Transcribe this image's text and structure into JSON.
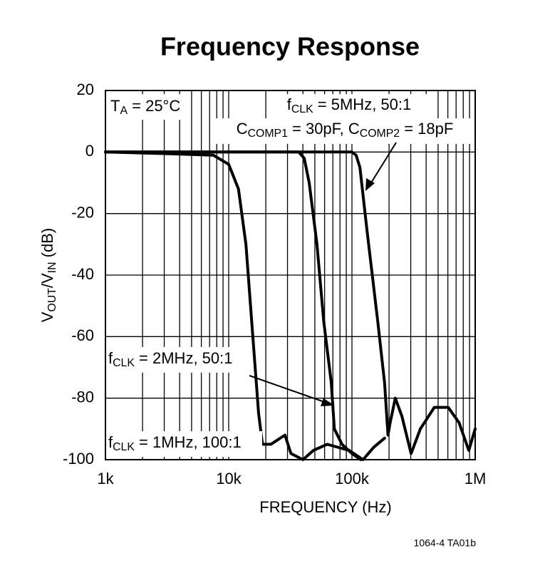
{
  "chart_data": {
    "type": "line",
    "title": "Frequency Response",
    "xlabel": "FREQUENCY (Hz)",
    "ylabel_parts": [
      "V",
      "OUT",
      "/V",
      "IN",
      " (dB)"
    ],
    "xscale": "log",
    "xlim": [
      1000,
      1000000
    ],
    "xticks": [
      {
        "value": 1000,
        "label": "1k"
      },
      {
        "value": 10000,
        "label": "10k"
      },
      {
        "value": 100000,
        "label": "100k"
      },
      {
        "value": 1000000,
        "label": "1M"
      }
    ],
    "xminorticks": [
      2000,
      3000,
      4000,
      5000,
      6000,
      7000,
      8000,
      9000,
      20000,
      30000,
      40000,
      50000,
      60000,
      70000,
      80000,
      90000,
      200000,
      300000,
      400000,
      500000,
      600000,
      700000,
      800000,
      900000
    ],
    "ylim": [
      -100,
      20
    ],
    "yticks": [
      20,
      0,
      -20,
      -40,
      -60,
      -80,
      -100
    ],
    "grid": true,
    "color": "#000000",
    "series": [
      {
        "color": "#000000",
        "x": [
          1000,
          3000,
          7500,
          10000,
          12000,
          13800,
          15700,
          17500,
          18800,
          22000,
          28600,
          32000,
          40000,
          48700,
          63000,
          95000,
          123000,
          150000,
          184000
        ],
        "values": [
          0,
          -0.5,
          -1,
          -4,
          -12,
          -30,
          -60,
          -85,
          -95,
          -95,
          -92,
          -98,
          -100,
          -97,
          -95,
          -97,
          -100,
          -96,
          -93
        ]
      },
      {
        "color": "#000000",
        "x": [
          1000,
          10000,
          37000,
          41000,
          45000,
          52000,
          59000,
          68000,
          72000,
          83000,
          100000,
          118000
        ],
        "values": [
          0,
          0,
          0,
          -2,
          -10,
          -30,
          -55,
          -75,
          -90,
          -95,
          -98,
          -100
        ]
      },
      {
        "color": "#000000",
        "x": [
          1000,
          10000,
          100000,
          108000,
          116000,
          132000,
          162000,
          184000,
          196000,
          204000,
          225000,
          255000,
          302000,
          359000,
          466000,
          605000,
          740000,
          887000,
          1000000
        ],
        "values": [
          0,
          0,
          0,
          -1,
          -5,
          -25,
          -55,
          -75,
          -92,
          -88,
          -80,
          -86,
          -98,
          -90,
          -83,
          -83,
          -88,
          -97,
          -90
        ]
      }
    ],
    "annotations": [
      {
        "parts": [
          "T",
          "A",
          " = 25°C"
        ]
      },
      {
        "parts": [
          "f",
          "CLK",
          " = 5MHz, 50:1"
        ]
      },
      {
        "parts": [
          "C",
          "COMP1",
          " = 30pF, C",
          "COMP2",
          " = 18pF"
        ]
      },
      {
        "parts": [
          "f",
          "CLK",
          " = 2MHz, 50:1"
        ]
      },
      {
        "parts": [
          "f",
          "CLK",
          " = 1MHz, 100:1"
        ]
      }
    ],
    "footnote": "1064-4 TA01b"
  }
}
